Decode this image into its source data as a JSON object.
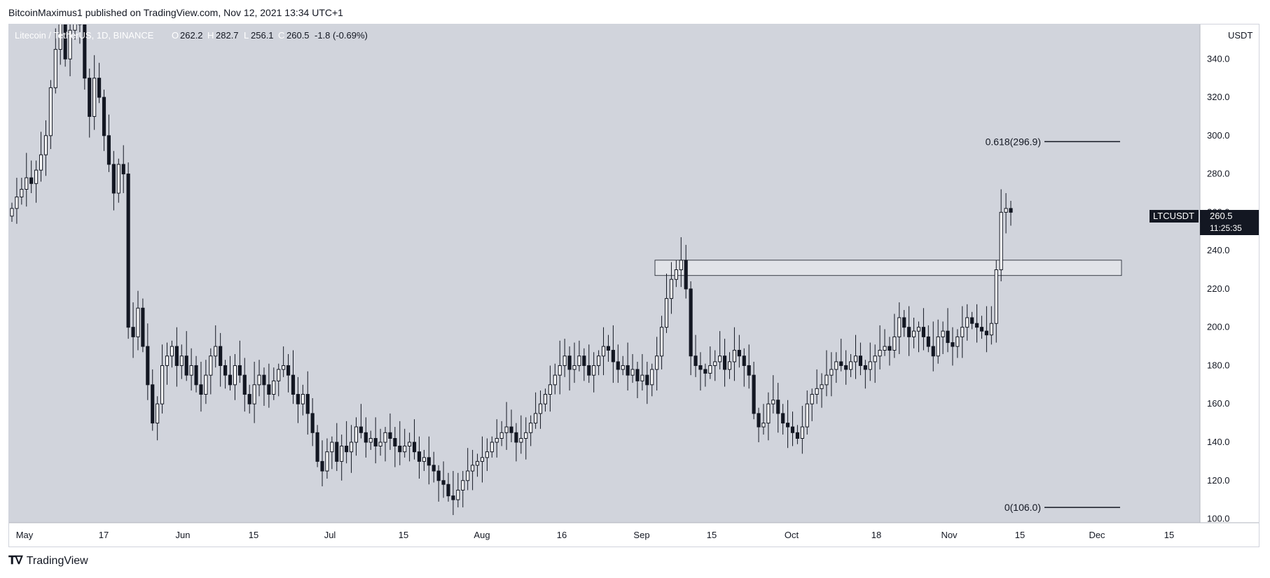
{
  "header": {
    "published": "BitcoinMaximus1 published on TradingView.com, Nov 12, 2021 13:34 UTC+1"
  },
  "legend": {
    "symbol": "Litecoin / TetherUS, 1D, BINANCE",
    "o_label": "O",
    "o": "262.2",
    "h_label": "H",
    "h": "282.7",
    "l_label": "L",
    "l": "256.1",
    "c_label": "C",
    "c": "260.5",
    "change": "-1.8 (-0.69%)"
  },
  "axis": {
    "currency": "USDT",
    "price_labels": [
      "100.0",
      "120.0",
      "140.0",
      "160.0",
      "180.0",
      "200.0",
      "220.0",
      "240.0",
      "260.0",
      "280.0",
      "300.0",
      "320.0",
      "340.0"
    ],
    "date_labels": [
      "May",
      "17",
      "Jun",
      "15",
      "Jul",
      "15",
      "Aug",
      "16",
      "Sep",
      "15",
      "Oct",
      "18",
      "Nov",
      "15",
      "Dec",
      "15"
    ]
  },
  "price_tag": {
    "symbol": "LTCUSDT",
    "price": "260.5",
    "countdown": "11:25:35"
  },
  "fib": {
    "upper_label": "0.618(296.9)",
    "upper_value": 296.9,
    "lower_label": "0(106.0)",
    "lower_value": 106.0
  },
  "zone": {
    "low": 227,
    "high": 235
  },
  "footer": {
    "brand": "TradingView"
  },
  "colors": {
    "plot_bg": "#d1d4dc",
    "up": "#ffffff",
    "down": "#131722",
    "text": "#131722"
  },
  "chart_data": {
    "type": "candlestick",
    "title": "Litecoin / TetherUS, 1D, BINANCE",
    "ylabel": "USDT",
    "ylim": [
      98,
      358
    ],
    "x": [
      "2021-05-01",
      "2021-12-20"
    ],
    "grid": false,
    "closes": [
      262,
      268,
      272,
      278,
      275,
      282,
      290,
      300,
      325,
      345,
      360,
      340,
      355,
      370,
      358,
      330,
      310,
      330,
      320,
      300,
      285,
      270,
      285,
      280,
      200,
      195,
      210,
      190,
      170,
      150,
      160,
      180,
      185,
      190,
      180,
      185,
      175,
      180,
      170,
      165,
      175,
      185,
      190,
      180,
      175,
      170,
      180,
      175,
      165,
      160,
      170,
      175,
      170,
      165,
      172,
      178,
      180,
      175,
      165,
      160,
      165,
      155,
      145,
      130,
      125,
      135,
      140,
      130,
      138,
      135,
      140,
      148,
      145,
      140,
      142,
      138,
      140,
      145,
      142,
      138,
      135,
      138,
      140,
      135,
      130,
      132,
      128,
      125,
      120,
      118,
      112,
      110,
      115,
      120,
      125,
      128,
      130,
      132,
      135,
      140,
      142,
      145,
      148,
      145,
      140,
      142,
      145,
      150,
      155,
      160,
      165,
      170,
      175,
      180,
      185,
      178,
      180,
      185,
      180,
      175,
      180,
      185,
      190,
      188,
      182,
      178,
      180,
      175,
      178,
      172,
      175,
      170,
      178,
      185,
      200,
      215,
      225,
      230,
      235,
      220,
      185,
      180,
      178,
      176,
      180,
      182,
      185,
      178,
      182,
      188,
      185,
      180,
      175,
      155,
      148,
      150,
      160,
      162,
      155,
      150,
      148,
      145,
      142,
      148,
      160,
      165,
      168,
      170,
      175,
      178,
      182,
      180,
      178,
      182,
      185,
      180,
      178,
      182,
      185,
      188,
      190,
      188,
      195,
      205,
      200,
      195,
      198,
      200,
      195,
      190,
      185,
      195,
      198,
      192,
      190,
      195,
      200,
      205,
      202,
      200,
      198,
      196,
      202,
      230,
      260,
      262,
      260
    ],
    "opens": [
      258,
      262,
      268,
      272,
      278,
      275,
      282,
      290,
      300,
      325,
      345,
      360,
      340,
      355,
      370,
      358,
      330,
      310,
      330,
      320,
      300,
      285,
      270,
      285,
      280,
      200,
      195,
      210,
      190,
      170,
      150,
      160,
      180,
      185,
      190,
      180,
      185,
      175,
      180,
      170,
      165,
      175,
      185,
      190,
      180,
      175,
      170,
      180,
      175,
      165,
      160,
      170,
      175,
      170,
      165,
      172,
      178,
      180,
      175,
      165,
      160,
      165,
      155,
      145,
      130,
      125,
      135,
      140,
      130,
      138,
      135,
      140,
      148,
      145,
      140,
      142,
      138,
      140,
      145,
      142,
      138,
      135,
      138,
      140,
      135,
      130,
      132,
      128,
      125,
      120,
      118,
      112,
      110,
      115,
      120,
      125,
      128,
      130,
      132,
      135,
      140,
      142,
      145,
      148,
      145,
      140,
      142,
      145,
      150,
      155,
      160,
      165,
      170,
      175,
      180,
      185,
      178,
      180,
      185,
      180,
      175,
      180,
      185,
      190,
      188,
      182,
      178,
      180,
      175,
      178,
      172,
      175,
      170,
      178,
      185,
      200,
      215,
      225,
      230,
      235,
      220,
      185,
      180,
      178,
      176,
      180,
      182,
      185,
      178,
      182,
      188,
      185,
      180,
      175,
      155,
      148,
      150,
      160,
      162,
      155,
      150,
      148,
      145,
      142,
      148,
      160,
      165,
      168,
      170,
      175,
      178,
      182,
      180,
      178,
      182,
      185,
      180,
      178,
      182,
      185,
      188,
      190,
      188,
      195,
      205,
      200,
      195,
      198,
      200,
      195,
      190,
      185,
      195,
      198,
      192,
      190,
      195,
      200,
      205,
      202,
      200,
      198,
      196,
      202,
      230,
      260,
      262
    ]
  }
}
